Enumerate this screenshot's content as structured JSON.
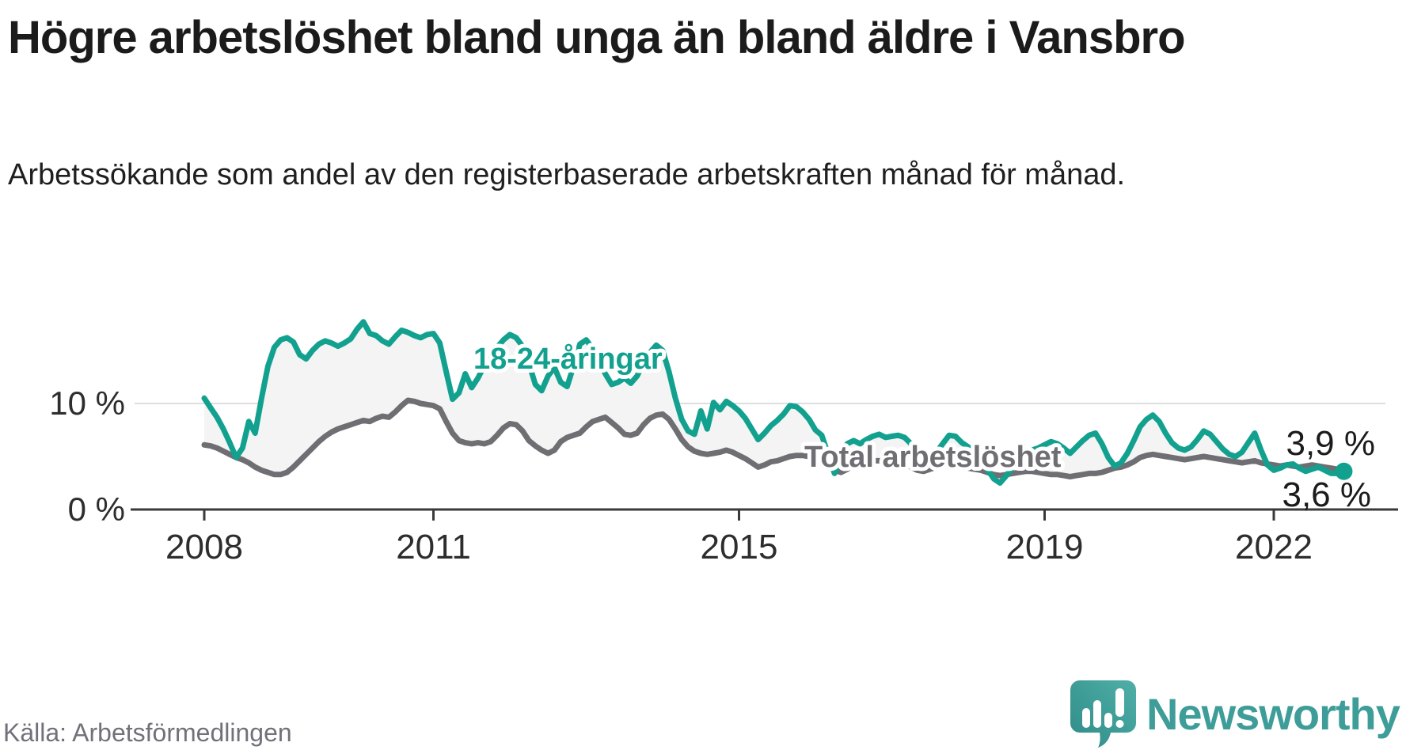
{
  "header": {
    "title": "Högre arbetslöshet bland unga än bland äldre i Vansbro",
    "subtitle": "Arbetssökande som andel av den registerbaserade arbetskraften månad för månad."
  },
  "chart_data": {
    "type": "line",
    "title": "Högre arbetslöshet bland unga än bland äldre i Vansbro",
    "unit": "%",
    "frequency": "monthly",
    "x_range": [
      "2008-01",
      "2022-12"
    ],
    "x_axis": {
      "tick_labels": [
        "2008",
        "2011",
        "2015",
        "2019",
        "2022"
      ],
      "tick_month_index": [
        0,
        36,
        84,
        132,
        168
      ]
    },
    "y_axis": {
      "ticks": [
        {
          "value": 0,
          "label": "0 %"
        },
        {
          "value": 10,
          "label": "10 %"
        }
      ],
      "max": 18.5
    },
    "styles": {
      "band_fill": "#f4f4f4",
      "grid_color": "#dedede",
      "axis_color": "#3a3a3a",
      "tick_label_color": "#2d2d2d",
      "value_label_color": "#1b1b1b"
    },
    "series": [
      {
        "name": "18-24-åringar",
        "color": "#13a18f",
        "line_width": 7,
        "end_dot": true,
        "end_value": 3.6,
        "end_label": "3,6 %",
        "values": [
          10.5,
          9.6,
          8.7,
          7.6,
          6.3,
          4.9,
          5.8,
          8.3,
          7.2,
          10.5,
          13.5,
          15.3,
          16.0,
          16.2,
          15.8,
          14.6,
          14.2,
          15.0,
          15.6,
          15.9,
          15.7,
          15.4,
          15.7,
          16.1,
          17.0,
          17.7,
          16.6,
          16.4,
          15.9,
          15.6,
          16.3,
          16.9,
          16.7,
          16.4,
          16.2,
          16.5,
          16.6,
          15.7,
          13.0,
          10.4,
          11.0,
          12.8,
          11.5,
          12.4,
          13.6,
          14.4,
          15.3,
          16.0,
          16.5,
          16.2,
          15.4,
          13.8,
          11.8,
          11.2,
          12.6,
          13.4,
          12.0,
          11.6,
          13.5,
          15.6,
          16.0,
          15.2,
          14.0,
          12.8,
          11.8,
          12.0,
          12.4,
          11.9,
          12.6,
          13.8,
          14.8,
          15.5,
          15.0,
          13.0,
          10.5,
          8.5,
          7.4,
          7.1,
          9.3,
          7.6,
          10.1,
          9.4,
          10.2,
          9.8,
          9.3,
          8.6,
          7.6,
          6.6,
          7.2,
          7.9,
          8.4,
          9.0,
          9.8,
          9.7,
          9.2,
          8.5,
          7.5,
          7.0,
          5.2,
          3.4,
          4.8,
          6.2,
          6.5,
          6.2,
          6.6,
          6.9,
          7.1,
          6.8,
          6.9,
          7.0,
          6.8,
          6.2,
          4.6,
          3.9,
          4.6,
          5.4,
          6.2,
          7.0,
          6.9,
          6.3,
          5.9,
          5.4,
          4.8,
          3.8,
          2.9,
          2.5,
          3.2,
          4.0,
          4.7,
          5.3,
          5.6,
          5.8,
          6.1,
          6.4,
          6.2,
          5.8,
          5.3,
          5.9,
          6.5,
          7.0,
          7.2,
          6.2,
          4.9,
          4.1,
          4.4,
          5.3,
          6.5,
          7.8,
          8.5,
          8.9,
          8.3,
          7.2,
          6.3,
          5.8,
          5.6,
          5.9,
          6.6,
          7.4,
          7.1,
          6.4,
          5.7,
          5.2,
          5.0,
          5.4,
          6.3,
          7.2,
          5.6,
          4.2,
          3.7,
          3.9,
          4.2,
          4.3,
          3.9,
          3.6,
          3.8,
          4.0,
          3.7,
          3.4,
          3.4,
          3.6
        ]
      },
      {
        "name": "Total arbetslöshet",
        "color": "#6e6e73",
        "line_width": 7,
        "end_dot": false,
        "end_value": 3.9,
        "end_label": "3,9 %",
        "values": [
          6.1,
          6.0,
          5.8,
          5.5,
          5.2,
          4.9,
          4.7,
          4.4,
          4.0,
          3.7,
          3.5,
          3.3,
          3.3,
          3.5,
          4.0,
          4.6,
          5.2,
          5.8,
          6.4,
          6.9,
          7.3,
          7.6,
          7.8,
          8.0,
          8.2,
          8.4,
          8.3,
          8.6,
          8.8,
          8.7,
          9.2,
          9.8,
          10.3,
          10.2,
          10.0,
          9.9,
          9.8,
          9.5,
          8.3,
          7.2,
          6.5,
          6.3,
          6.2,
          6.3,
          6.2,
          6.4,
          7.0,
          7.7,
          8.1,
          8.0,
          7.4,
          6.5,
          6.0,
          5.6,
          5.3,
          5.6,
          6.4,
          6.8,
          7.0,
          7.2,
          7.8,
          8.3,
          8.5,
          8.7,
          8.2,
          7.7,
          7.1,
          7.0,
          7.2,
          8.0,
          8.6,
          8.9,
          9.0,
          8.5,
          7.6,
          6.6,
          5.9,
          5.5,
          5.3,
          5.2,
          5.3,
          5.4,
          5.6,
          5.4,
          5.1,
          4.8,
          4.4,
          4.0,
          4.2,
          4.5,
          4.6,
          4.8,
          5.0,
          5.1,
          5.1,
          5.0,
          5.0,
          4.9,
          4.4,
          3.7,
          3.5,
          3.8,
          4.2,
          4.4,
          4.5,
          4.6,
          4.6,
          4.5,
          4.4,
          4.4,
          4.3,
          4.0,
          3.7,
          3.6,
          3.8,
          4.0,
          4.1,
          4.2,
          4.1,
          4.0,
          3.9,
          3.8,
          3.7,
          3.5,
          3.3,
          3.2,
          3.3,
          3.4,
          3.5,
          3.6,
          3.6,
          3.5,
          3.4,
          3.3,
          3.3,
          3.2,
          3.1,
          3.2,
          3.3,
          3.4,
          3.4,
          3.5,
          3.7,
          3.9,
          4.0,
          4.2,
          4.5,
          4.9,
          5.1,
          5.2,
          5.1,
          5.0,
          4.9,
          4.8,
          4.7,
          4.8,
          4.9,
          5.0,
          4.9,
          4.8,
          4.7,
          4.6,
          4.5,
          4.4,
          4.5,
          4.6,
          4.4,
          4.3,
          4.2,
          4.1,
          4.2,
          4.1,
          4.0,
          4.1,
          4.2,
          4.1,
          4.0,
          3.9,
          3.8,
          3.9
        ]
      }
    ]
  },
  "footer": {
    "source": "Källa: Arbetsförmedlingen",
    "logo_text": "Newsworthy"
  }
}
